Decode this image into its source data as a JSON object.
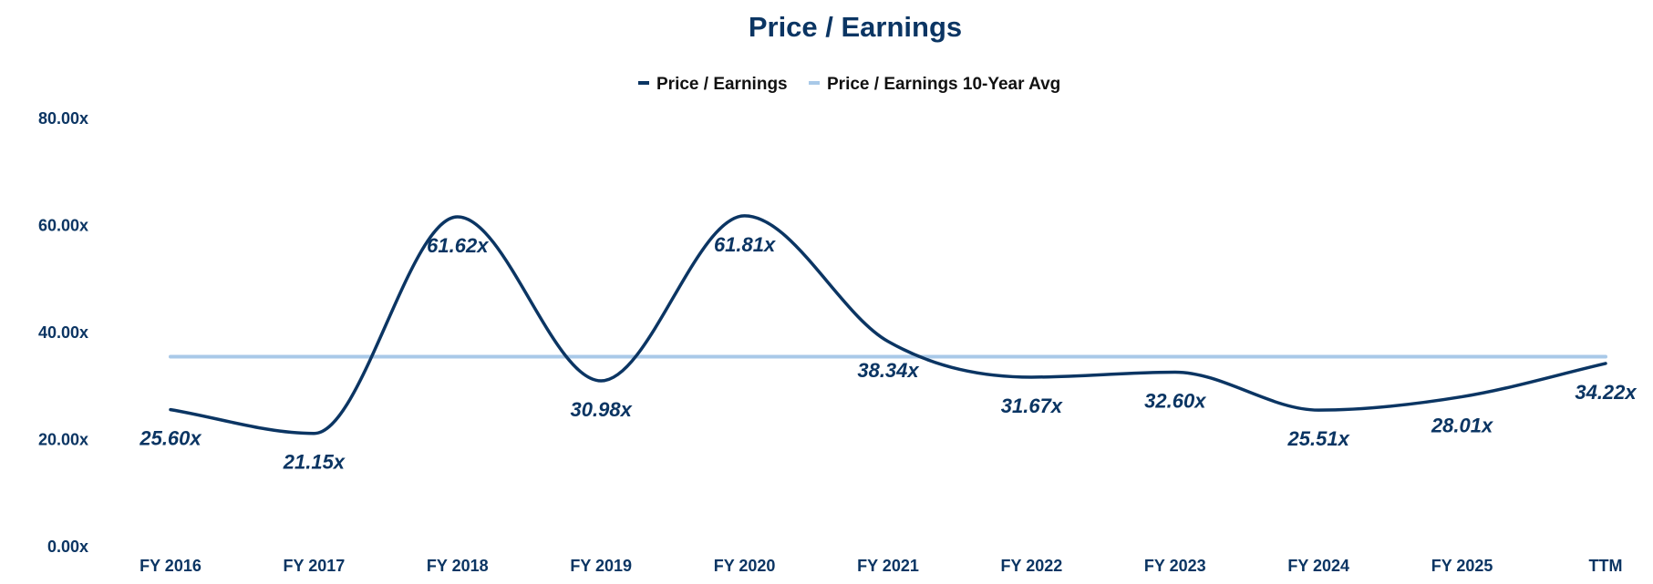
{
  "chart_data": {
    "type": "line",
    "title": "Price / Earnings",
    "xlabel": "",
    "ylabel": "",
    "categories": [
      "FY 2016",
      "FY 2017",
      "FY 2018",
      "FY 2019",
      "FY 2020",
      "FY 2021",
      "FY 2022",
      "FY 2023",
      "FY 2024",
      "FY 2025",
      "TTM"
    ],
    "series": [
      {
        "name": "Price / Earnings",
        "color": "#0b3563",
        "values": [
          25.6,
          21.15,
          61.62,
          30.98,
          61.81,
          38.34,
          31.67,
          32.6,
          25.51,
          28.01,
          34.22
        ],
        "labels": [
          "25.60x",
          "21.15x",
          "61.62x",
          "30.98x",
          "61.81x",
          "38.34x",
          "31.67x",
          "32.60x",
          "25.51x",
          "28.01x",
          "34.22x"
        ]
      },
      {
        "name": "Price / Earnings 10-Year Avg",
        "color": "#a9c9e8",
        "constant": 35.5
      }
    ],
    "ylim": [
      0,
      80
    ],
    "yticks": [
      0,
      20,
      40,
      60,
      80
    ],
    "ytick_labels": [
      "0.00x",
      "20.00x",
      "40.00x",
      "60.00x",
      "80.00x"
    ],
    "legend_position": "top-center",
    "grid": false
  }
}
